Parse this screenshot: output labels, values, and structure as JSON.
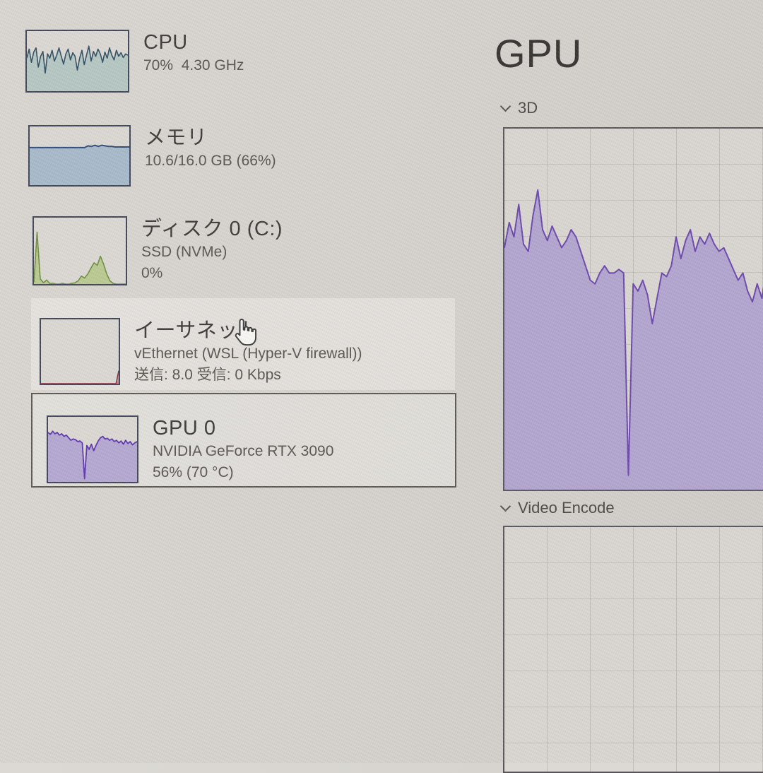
{
  "sidebar": {
    "items": [
      {
        "id": "cpu",
        "title": "CPU",
        "lines": [
          "70%  4.30 GHz"
        ]
      },
      {
        "id": "memory",
        "title": "メモリ",
        "lines": [
          "10.6/16.0 GB (66%)"
        ]
      },
      {
        "id": "disk",
        "title": "ディスク 0 (C:)",
        "lines": [
          "SSD (NVMe)",
          "0%"
        ]
      },
      {
        "id": "ethernet",
        "title": "イーサネット",
        "lines": [
          "vEthernet (WSL (Hyper-V firewall))",
          "送信: 8.0 受信: 0 Kbps"
        ]
      },
      {
        "id": "gpu0",
        "title": "GPU 0",
        "lines": [
          "NVIDIA GeForce RTX 3090",
          "56% (70 °C)"
        ],
        "selected": true
      }
    ]
  },
  "main": {
    "title": "GPU",
    "sections": [
      {
        "label": "3D"
      },
      {
        "label": "Video Encode"
      }
    ]
  },
  "colors": {
    "background": "#d7d4cf",
    "text_primary": "#3b3936",
    "text_secondary": "#585450",
    "cpu_accent": "#2e4d63",
    "memory_accent": "#2e4a78",
    "disk_accent": "#6f8f3f",
    "ethernet_accent": "#8b2635",
    "gpu_accent": "#6b46ae"
  },
  "chart_data": {
    "cpu_mini": {
      "type": "area",
      "ylim": [
        0,
        100
      ],
      "line_color": "#2e4d63",
      "fill_color": "#b7c9c5",
      "stroke_width": 1.6,
      "values": [
        55,
        70,
        48,
        65,
        72,
        40,
        58,
        66,
        30,
        62,
        55,
        68,
        50,
        60,
        72,
        58,
        45,
        62,
        70,
        52,
        64,
        58,
        35,
        55,
        68,
        44,
        60,
        75,
        50,
        66,
        58,
        70,
        62,
        48,
        65,
        55,
        72,
        60,
        52,
        68,
        58,
        64,
        56,
        62,
        60
      ]
    },
    "memory_mini": {
      "type": "area",
      "ylim": [
        0,
        100
      ],
      "line_color": "#2e4a78",
      "fill_color": "#a8bccc",
      "stroke_width": 2,
      "values": [
        64,
        64,
        64,
        64,
        64,
        64,
        64,
        64,
        64,
        64,
        64,
        64,
        64,
        64,
        64,
        64,
        64,
        67,
        66,
        68,
        66,
        68,
        67,
        66,
        66,
        65,
        65,
        65,
        65,
        65
      ]
    },
    "disk_mini": {
      "type": "area",
      "ylim": [
        0,
        100
      ],
      "line_color": "#6f8f3f",
      "fill_color": "#bccc92",
      "stroke_width": 1.6,
      "values": [
        3,
        78,
        8,
        2,
        6,
        1,
        1,
        0,
        0,
        1,
        0,
        0,
        1,
        2,
        5,
        12,
        9,
        15,
        24,
        32,
        28,
        42,
        30,
        15,
        5,
        1,
        0,
        0,
        0,
        0
      ]
    },
    "ethernet_mini": {
      "type": "area",
      "ylim": [
        0,
        100
      ],
      "line_color": "#8b2635",
      "fill_color": "#c98f98",
      "stroke_width": 1.4,
      "values": [
        0,
        0,
        0,
        0,
        0,
        0,
        0,
        0,
        0,
        0,
        0,
        0,
        0,
        0,
        0,
        0,
        0,
        0,
        0,
        0,
        0,
        0,
        0,
        0,
        0,
        0,
        0,
        0,
        0,
        20
      ]
    },
    "gpu0_mini": {
      "type": "area",
      "ylim": [
        0,
        100
      ],
      "line_color": "#5e35b0",
      "fill_color": "#b6a9d4",
      "stroke_width": 1.8,
      "values": [
        76,
        73,
        78,
        74,
        76,
        72,
        74,
        70,
        72,
        68,
        64,
        66,
        65,
        62,
        63,
        60,
        5,
        56,
        50,
        58,
        48,
        56,
        63,
        68,
        70,
        66,
        67,
        64,
        66,
        62,
        64,
        60,
        63,
        58,
        64,
        59,
        62,
        57,
        60,
        62
      ]
    },
    "gpu_3d": {
      "type": "area",
      "label": "3D",
      "ylim": [
        0,
        100
      ],
      "grid": true,
      "line_color": "#6b46ae",
      "fill_color": "#b3a6d2",
      "stroke_width": 2,
      "values": [
        67,
        74,
        70,
        79,
        68,
        66,
        76,
        83,
        72,
        69,
        73,
        70,
        67,
        69,
        72,
        70,
        66,
        62,
        58,
        57,
        60,
        62,
        60,
        60,
        61,
        60,
        4,
        57,
        55,
        58,
        54,
        46,
        53,
        60,
        59,
        62,
        70,
        64,
        69,
        72,
        66,
        70,
        68,
        71,
        68,
        66,
        67,
        64,
        61,
        58,
        60,
        55,
        52,
        57,
        53,
        62,
        70
      ]
    },
    "video_encode": {
      "type": "area",
      "label": "Video Encode",
      "ylim": [
        0,
        100
      ],
      "grid": true,
      "line_color": "#6b46ae",
      "fill_color": "#b3a6d2",
      "stroke_width": 2,
      "values": []
    }
  }
}
